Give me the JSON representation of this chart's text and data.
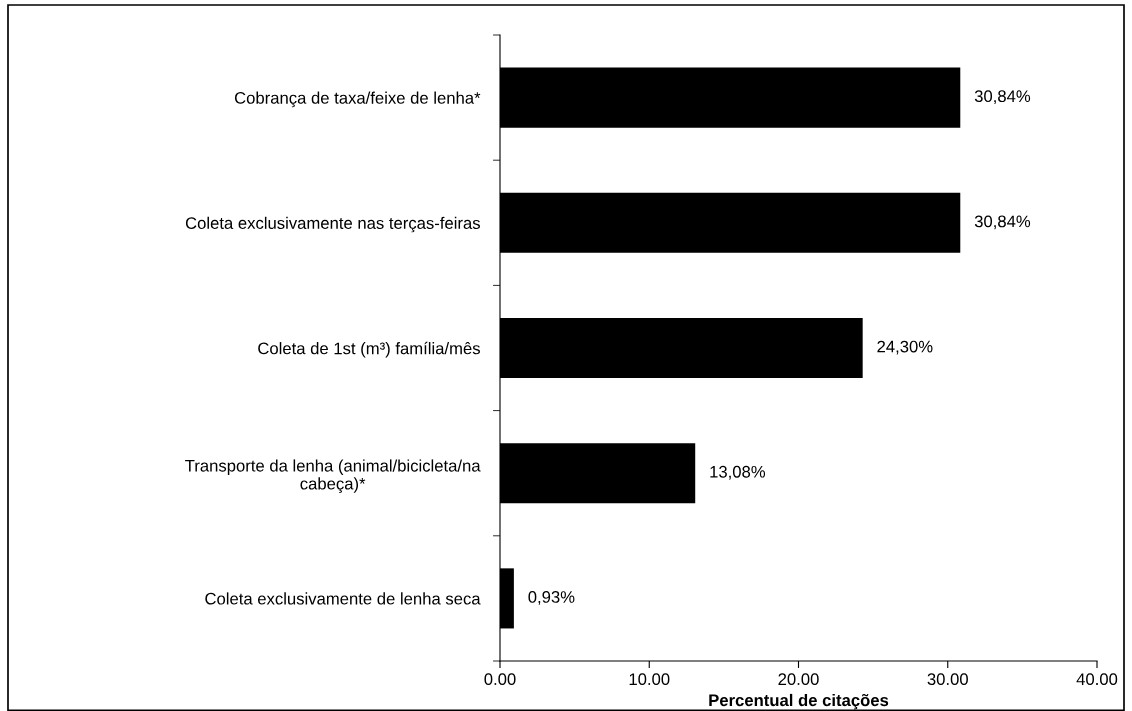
{
  "chart_data": {
    "type": "bar",
    "orientation": "horizontal",
    "categories": [
      "Cobrança de taxa/feixe de lenha*",
      "Coleta exclusivamente nas terças-feiras",
      "Coleta de 1st (m³) família/mês",
      "Transporte da lenha (animal/bicicleta/na\ncabeça)*",
      "Coleta exclusivamente de lenha seca"
    ],
    "values": [
      30.84,
      30.84,
      24.3,
      13.08,
      0.93
    ],
    "value_labels": [
      "30,84%",
      "30,84%",
      "24,30%",
      "13,08%",
      "0,93%"
    ],
    "color": "#000000",
    "xlim": [
      0,
      40
    ],
    "xticks": [
      {
        "value": 0,
        "label": "0.00"
      },
      {
        "value": 10,
        "label": "10.00"
      },
      {
        "value": 20,
        "label": "20.00"
      },
      {
        "value": 30,
        "label": "30.00"
      },
      {
        "value": 40,
        "label": "40.00"
      }
    ],
    "xlabel": "Percentual de citações",
    "grid": false,
    "legend": false
  }
}
